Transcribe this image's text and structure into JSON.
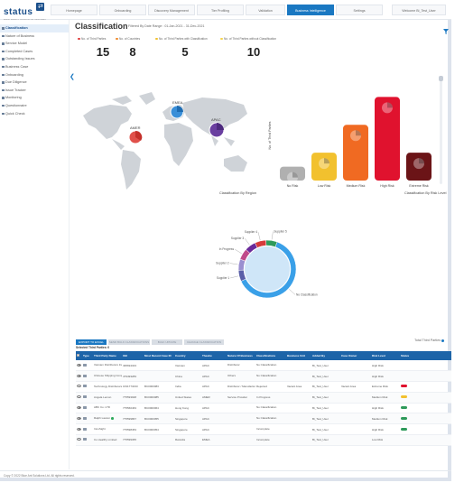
{
  "app": {
    "logo_text": "status",
    "logo_sub": "RISK INTELLIGENCE PLATFORM",
    "logo_mark": "⇄"
  },
  "nav": {
    "tabs": [
      {
        "label": "Homepage"
      },
      {
        "label": "Onboarding"
      },
      {
        "label": "Discovery Management"
      },
      {
        "label": "Tier Profiling"
      },
      {
        "label": "Validation"
      },
      {
        "label": "Business Intelligence"
      },
      {
        "label": "Settings"
      }
    ],
    "user_label": "Welcome Bi_Test_User"
  },
  "sidebar": {
    "items": [
      {
        "label": "Classification"
      },
      {
        "label": "Nature of Business"
      },
      {
        "label": "Service Model"
      },
      {
        "label": "Completed Cases"
      },
      {
        "label": "Outstanding Issues"
      },
      {
        "label": "Business Case"
      },
      {
        "label": "Onboarding"
      },
      {
        "label": "Due Diligence"
      },
      {
        "label": "Issue Tracker"
      },
      {
        "label": "Monitoring"
      },
      {
        "label": "Questionnaire"
      },
      {
        "label": "Quick Check"
      }
    ]
  },
  "header": {
    "title": "Classification",
    "filter": "Filtered By Date Range : 01-Jan-2021 - 31-Dec-2021"
  },
  "cards": [
    {
      "label": "No. of Third Parties",
      "value": "15",
      "dot_color": "#e03a3a"
    },
    {
      "label": "No. of Countries",
      "value": "8",
      "dot_color": "#f08a2a"
    },
    {
      "label": "No. of Third Parties with Classification",
      "value": "5",
      "dot_color": "#f2c12e"
    },
    {
      "label": "No. of Third Parties without Classification",
      "value": "10",
      "dot_color": "#f5d44a"
    }
  ],
  "map": {
    "caption": "Classification By Region",
    "regions": [
      {
        "label": "EMEA",
        "color": "#3a8fd8"
      },
      {
        "label": "AMER",
        "color": "#e0504a"
      },
      {
        "label": "APAC",
        "color": "#6a3fa0"
      }
    ]
  },
  "chart_data": [
    {
      "type": "bar",
      "title": "",
      "xlabel": "Classification By Risk Level",
      "ylabel": "No. of Third Parties",
      "categories": [
        "No Risk",
        "Low Risk",
        "Medium Risk",
        "High Risk",
        "Extreme Risk"
      ],
      "values": [
        1,
        2,
        4,
        6,
        2
      ],
      "colors": [
        "#b0b0b0",
        "#f2c12e",
        "#f06a22",
        "#e0122e",
        "#6b1417"
      ],
      "ylim": [
        0,
        7
      ],
      "grid": false
    },
    {
      "type": "pie",
      "style": "donut",
      "title": "",
      "labels": [
        "No Classification",
        "Supplier 1",
        "Supplier 2",
        "In Progress",
        "Supplier 3",
        "Supplier 4",
        "Supplier 5"
      ],
      "values": [
        10,
        1,
        1,
        1,
        1,
        1,
        1
      ],
      "colors": [
        "#3aa0e8",
        "#5a5fa8",
        "#9a8fd0",
        "#c04a8a",
        "#6a2a9a",
        "#d63a3a",
        "#2e9a5a"
      ]
    }
  ],
  "table": {
    "export_label": "EXPORT TO EXCEL",
    "bulk_buttons": [
      "SEND BULK CLASSIFICATIONS",
      "BULK UPDATE",
      "CHANGE CLASSIFICATION"
    ],
    "selected_label": "Selected Third Parties: 0",
    "total_label": "Total Third Parties",
    "columns": [
      "",
      "Type",
      "Third Party Name",
      "UEI",
      "Most Recent Case ID",
      "Country",
      "Theatre",
      "Nature Of Business",
      "Classifications",
      "Business Unit",
      "Added By",
      "Case Owner",
      "Risk Level",
      "Status"
    ],
    "rows": [
      {
        "name": "Vietnam Distributors Inc",
        "uei": "495694323",
        "case": "",
        "country": "Vietnam",
        "theatre": "APAC",
        "nature": "Distributor",
        "classification": "No Classification",
        "bu": "",
        "added": "Bi_Test_User",
        "owner": "",
        "risk": "High Risk",
        "status_color": "",
        "verified": true
      },
      {
        "name": "Chinese Shipping Company",
        "uei": "479493283",
        "case": "",
        "country": "China",
        "theatre": "APAC",
        "nature": "Others",
        "classification": "No Classification",
        "bu": "",
        "added": "Bi_Test_User",
        "owner": "",
        "risk": "High Risk",
        "status_color": "",
        "verified": false
      },
      {
        "name": "Technology Distributors Pvt",
        "uei": "1631773233",
        "case": "BC0000083",
        "country": "India",
        "theatre": "APAC",
        "nature": "Distributor / Manufacturer",
        "classification": "Rejected",
        "bu": "Vacant Area",
        "added": "Bi_Test_User",
        "owner": "Vacant Area",
        "risk": "Extreme Risk",
        "status_color": "#e0122e",
        "verified": false
      },
      {
        "name": "Angela Lemon",
        "uei": "775593948",
        "case": "BC0000085",
        "country": "United States",
        "theatre": "AMER",
        "nature": "Service Provider",
        "classification": "In Progress",
        "bu": "",
        "added": "Bi_Test_User",
        "owner": "",
        "risk": "Medium Risk",
        "status_color": "#f2c12e",
        "verified": false
      },
      {
        "name": "ABC Co. LTD",
        "uei": "775560463",
        "case": "BC0000064",
        "country": "Hong Kong",
        "theatre": "APAC",
        "nature": "",
        "classification": "No Classification",
        "bu": "",
        "added": "Bi_Test_User",
        "owner": "",
        "risk": "High Risk",
        "status_color": "#2e9a5a",
        "verified": false
      },
      {
        "name": "Ralph Lauren",
        "uei": "775599867",
        "case": "BC0000055",
        "country": "Singapore",
        "theatre": "APAC",
        "nature": "",
        "classification": "No Classification",
        "bu": "",
        "added": "Bi_Test_User",
        "owner": "",
        "risk": "Medium Risk",
        "status_color": "#2e9a5a",
        "verified": true
      },
      {
        "name": "InnoSight",
        "uei": "775598453",
        "case": "BC0000054",
        "country": "Singapore",
        "theatre": "APAC",
        "nature": "",
        "classification": "Incomplete",
        "bu": "",
        "added": "Bi_Test_User",
        "owner": "",
        "risk": "High Risk",
        "status_color": "#2e9a5a",
        "verified": false
      },
      {
        "name": "Co Healthy Limited",
        "uei": "775599365",
        "case": "",
        "country": "Rwanda",
        "theatre": "EMEA",
        "nature": "",
        "classification": "Incomplete",
        "bu": "",
        "added": "Bi_Test_User",
        "owner": "",
        "risk": "Low Risk",
        "status_color": "",
        "verified": false
      }
    ]
  },
  "footer": {
    "copyright": "Copy © 2022 Blue Ant Solutions Ltd. All rights reserved."
  }
}
